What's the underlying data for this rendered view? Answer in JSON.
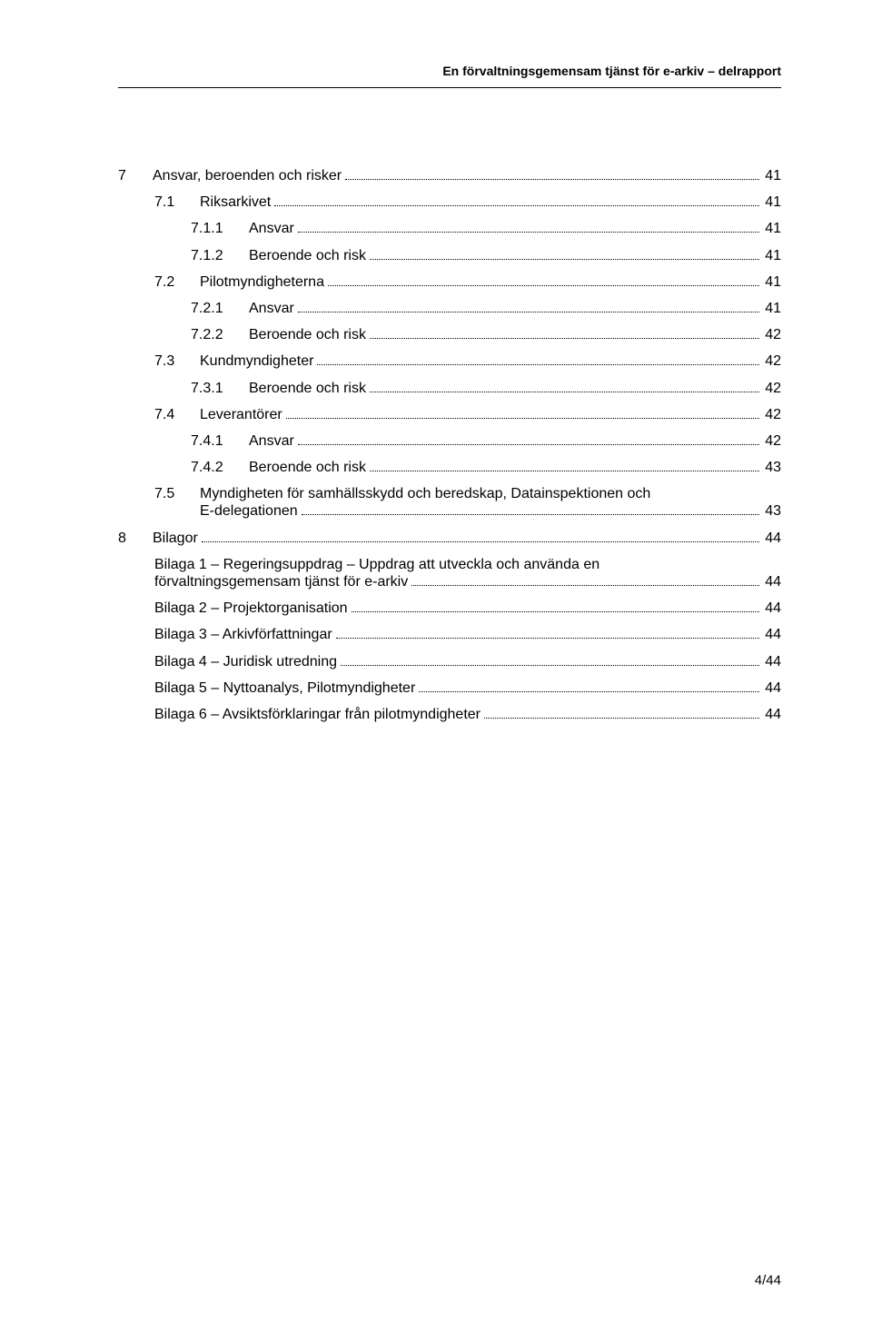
{
  "header": {
    "running_head": "En förvaltningsgemensam tjänst för e-arkiv – delrapport"
  },
  "toc": {
    "s7": {
      "num": "7",
      "title": "Ansvar, beroenden och risker",
      "page": "41"
    },
    "s7_1": {
      "num": "7.1",
      "title": "Riksarkivet",
      "page": "41"
    },
    "s7_1_1": {
      "num": "7.1.1",
      "title": "Ansvar",
      "page": "41"
    },
    "s7_1_2": {
      "num": "7.1.2",
      "title": "Beroende och risk",
      "page": "41"
    },
    "s7_2": {
      "num": "7.2",
      "title": "Pilotmyndigheterna",
      "page": "41"
    },
    "s7_2_1": {
      "num": "7.2.1",
      "title": "Ansvar",
      "page": "41"
    },
    "s7_2_2": {
      "num": "7.2.2",
      "title": "Beroende och risk",
      "page": "42"
    },
    "s7_3": {
      "num": "7.3",
      "title": "Kundmyndigheter",
      "page": "42"
    },
    "s7_3_1": {
      "num": "7.3.1",
      "title": "Beroende och risk",
      "page": "42"
    },
    "s7_4": {
      "num": "7.4",
      "title": "Leverantörer",
      "page": "42"
    },
    "s7_4_1": {
      "num": "7.4.1",
      "title": "Ansvar",
      "page": "42"
    },
    "s7_4_2": {
      "num": "7.4.2",
      "title": "Beroende och risk",
      "page": "43"
    },
    "s7_5": {
      "num": "7.5",
      "title_line1": "Myndigheten för samhällsskydd och beredskap, Datainspektionen och",
      "title_line2": "E-delegationen",
      "page": "43"
    },
    "s8": {
      "num": "8",
      "title": "Bilagor",
      "page": "44"
    },
    "bilaga1": {
      "line1": "Bilaga 1 – Regeringsuppdrag – Uppdrag att utveckla och använda en",
      "line2": "förvaltningsgemensam tjänst för e-arkiv",
      "page": "44"
    },
    "bilaga2": {
      "title": "Bilaga 2 – Projektorganisation",
      "page": "44"
    },
    "bilaga3": {
      "title": "Bilaga 3 – Arkivförfattningar",
      "page": "44"
    },
    "bilaga4": {
      "title": "Bilaga 4 – Juridisk utredning",
      "page": "44"
    },
    "bilaga5": {
      "title": "Bilaga 5 – Nyttoanalys, Pilotmyndigheter",
      "page": "44"
    },
    "bilaga6": {
      "title": "Bilaga 6  – Avsiktsförklaringar från pilotmyndigheter",
      "page": "44"
    }
  },
  "footer": {
    "page_label": "4/44"
  }
}
